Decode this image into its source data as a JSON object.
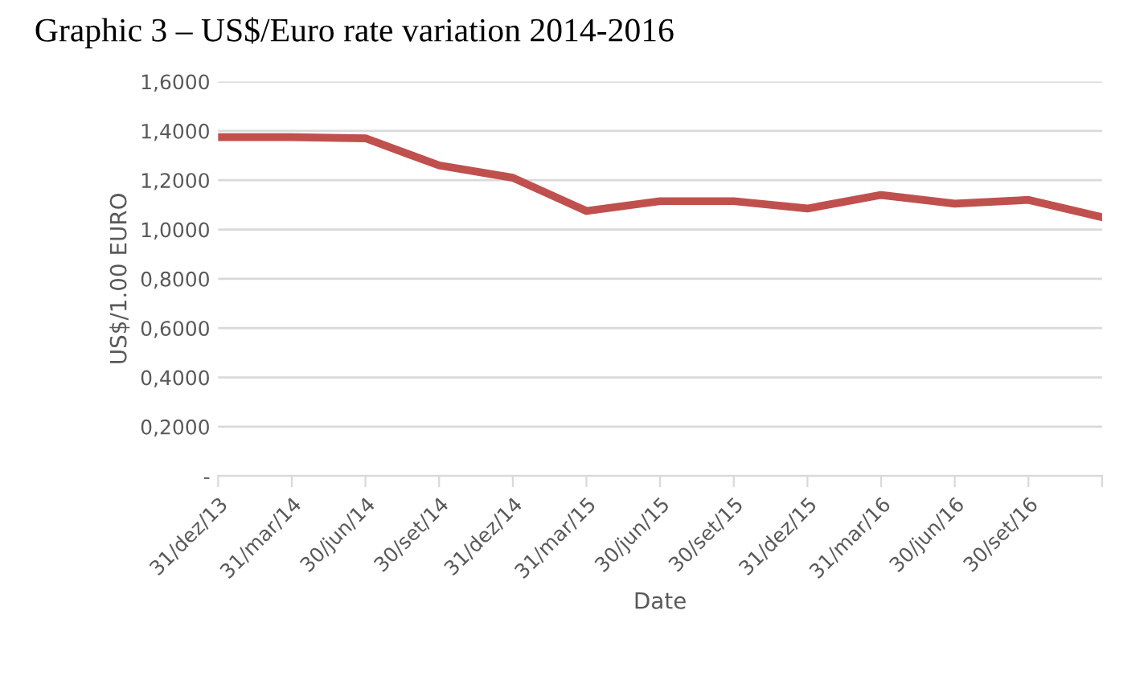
{
  "chart_data": {
    "type": "line",
    "title": "Graphic 3 – US$/Euro rate variation 2014-2016",
    "xlabel": "Date",
    "ylabel": "US$/1.00 EURO",
    "categories": [
      "31/dez/13",
      "31/mar/14",
      "30/jun/14",
      "30/set/14",
      "31/dez/14",
      "31/mar/15",
      "30/jun/15",
      "30/set/15",
      "31/dez/15",
      "31/mar/16",
      "30/jun/16",
      "30/set/16",
      null
    ],
    "series": [
      {
        "color": "#c0504d",
        "values": [
          1.375,
          1.375,
          1.37,
          1.26,
          1.21,
          1.075,
          1.115,
          1.115,
          1.085,
          1.14,
          1.105,
          1.12,
          1.05
        ]
      }
    ],
    "ylim": [
      0,
      1.6
    ],
    "yticks": [
      {
        "value": 0,
        "label": "-"
      },
      {
        "value": 0.2,
        "label": "0,2000"
      },
      {
        "value": 0.4,
        "label": "0,4000"
      },
      {
        "value": 0.6,
        "label": "0,6000"
      },
      {
        "value": 0.8,
        "label": "0,8000"
      },
      {
        "value": 1.0,
        "label": "1,0000"
      },
      {
        "value": 1.2,
        "label": "1,2000"
      },
      {
        "value": 1.4,
        "label": "1,4000"
      },
      {
        "value": 1.6,
        "label": "1,6000"
      }
    ],
    "grid": "y",
    "marker": "none",
    "line_style": "solid"
  }
}
